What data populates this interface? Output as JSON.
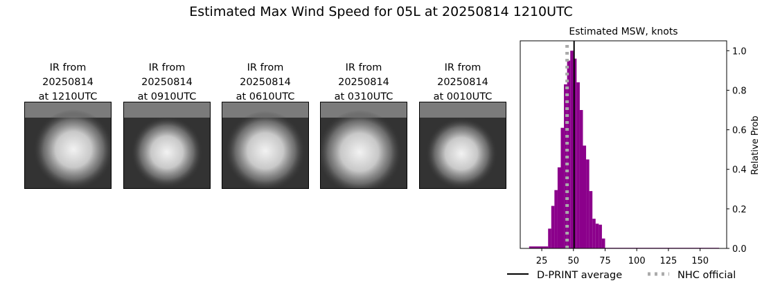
{
  "page": {
    "title": "Estimated Max Wind Speed for 05L at 20250814 1210UTC"
  },
  "panels": [
    {
      "caption": "IR from\n20250814\nat 1210UTC",
      "alt": "ir-satellite-image"
    },
    {
      "caption": "IR from\n20250814\nat 0910UTC",
      "alt": "ir-satellite-image"
    },
    {
      "caption": "IR from\n20250814\nat 0610UTC",
      "alt": "ir-satellite-image"
    },
    {
      "caption": "IR from\n20250814\nat 0310UTC",
      "alt": "ir-satellite-image"
    },
    {
      "caption": "IR from\n20250814\nat 0010UTC",
      "alt": "ir-satellite-image"
    }
  ],
  "chart_data": {
    "type": "bar",
    "title": "Estimated MSW, knots",
    "xlabel": "",
    "ylabel": "Relative Prob",
    "xlim": [
      8,
      171
    ],
    "ylim": [
      0,
      1.05
    ],
    "xticks": [
      25,
      50,
      75,
      100,
      125,
      150
    ],
    "yticks": [
      0.0,
      0.2,
      0.4,
      0.6,
      0.8,
      1.0
    ],
    "y_axis_side": "right",
    "bar_color": "#8b008b",
    "bin_width": 2.5,
    "bins": [
      {
        "x0": 15,
        "x1": 30,
        "y": 0.01
      },
      {
        "x0": 30,
        "x1": 32.5,
        "y": 0.1
      },
      {
        "x0": 32.5,
        "x1": 35,
        "y": 0.215
      },
      {
        "x0": 35,
        "x1": 37.5,
        "y": 0.295
      },
      {
        "x0": 37.5,
        "x1": 40,
        "y": 0.41
      },
      {
        "x0": 40,
        "x1": 42.5,
        "y": 0.61
      },
      {
        "x0": 42.5,
        "x1": 45,
        "y": 0.83
      },
      {
        "x0": 45,
        "x1": 47.5,
        "y": 0.95
      },
      {
        "x0": 47.5,
        "x1": 50,
        "y": 1.0
      },
      {
        "x0": 50,
        "x1": 52.5,
        "y": 0.96
      },
      {
        "x0": 52.5,
        "x1": 55,
        "y": 0.84
      },
      {
        "x0": 55,
        "x1": 57.5,
        "y": 0.7
      },
      {
        "x0": 57.5,
        "x1": 60,
        "y": 0.52
      },
      {
        "x0": 60,
        "x1": 62.5,
        "y": 0.45
      },
      {
        "x0": 62.5,
        "x1": 65,
        "y": 0.29
      },
      {
        "x0": 65,
        "x1": 67.5,
        "y": 0.15
      },
      {
        "x0": 67.5,
        "x1": 70,
        "y": 0.125
      },
      {
        "x0": 70,
        "x1": 72.5,
        "y": 0.12
      },
      {
        "x0": 72.5,
        "x1": 75,
        "y": 0.05
      },
      {
        "x0": 75,
        "x1": 165,
        "y": 0.003
      }
    ],
    "lines": [
      {
        "name": "D-PRINT average",
        "x": 50.5,
        "color": "#000000",
        "style": "solid"
      },
      {
        "name": "NHC official",
        "x": 45,
        "color": "#aaaaaa",
        "style": "dotted"
      }
    ],
    "legend": {
      "position": "bottom",
      "entries": [
        "D-PRINT average",
        "NHC official"
      ]
    },
    "grid": false
  }
}
